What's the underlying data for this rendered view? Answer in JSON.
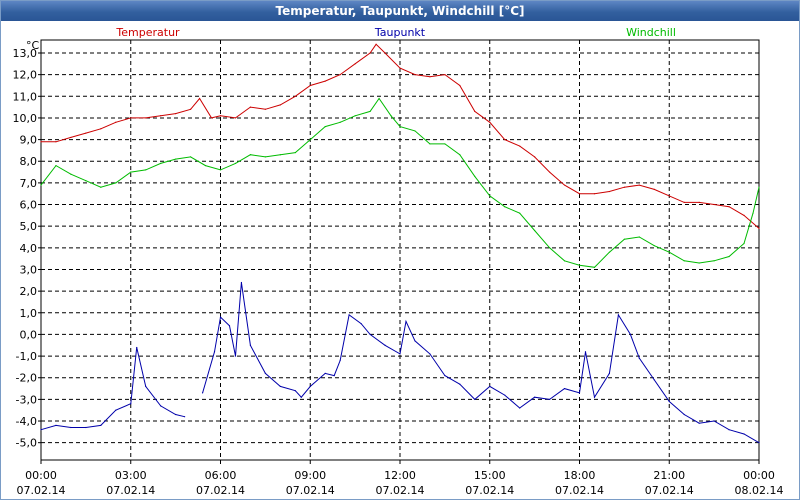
{
  "window": {
    "title": "Temperatur, Taupunkt, Windchill [°C]"
  },
  "chart_data": {
    "type": "line",
    "title": "Temperatur, Taupunkt, Windchill [°C]",
    "ylabel": "°C",
    "ylim": [
      -5.8,
      13.6
    ],
    "yticks": [
      "13,0",
      "12,0",
      "11,0",
      "10,0",
      "9,0",
      "8,0",
      "7,0",
      "6,0",
      "5,0",
      "4,0",
      "3,0",
      "2,0",
      "1,0",
      "0,0",
      "-1,0",
      "-2,0",
      "-3,0",
      "-4,0",
      "-5,0"
    ],
    "xlim": [
      0,
      24
    ],
    "xticks": [
      {
        "time": "00:00",
        "date": "07.02.14"
      },
      {
        "time": "03:00",
        "date": "07.02.14"
      },
      {
        "time": "06:00",
        "date": "07.02.14"
      },
      {
        "time": "09:00",
        "date": "07.02.14"
      },
      {
        "time": "12:00",
        "date": "07.02.14"
      },
      {
        "time": "15:00",
        "date": "07.02.14"
      },
      {
        "time": "18:00",
        "date": "07.02.14"
      },
      {
        "time": "21:00",
        "date": "07.02.14"
      },
      {
        "time": "00:00",
        "date": "08.02.14"
      }
    ],
    "grid": true,
    "series": [
      {
        "name": "Temperatur",
        "color": "#cc0000",
        "points": [
          [
            0,
            8.9
          ],
          [
            0.5,
            8.9
          ],
          [
            1,
            9.1
          ],
          [
            1.5,
            9.3
          ],
          [
            2,
            9.5
          ],
          [
            2.5,
            9.8
          ],
          [
            3,
            10.0
          ],
          [
            3.5,
            10.0
          ],
          [
            4,
            10.1
          ],
          [
            4.5,
            10.2
          ],
          [
            5,
            10.4
          ],
          [
            5.3,
            10.9
          ],
          [
            5.7,
            10.0
          ],
          [
            6,
            10.1
          ],
          [
            6.5,
            10.0
          ],
          [
            7,
            10.5
          ],
          [
            7.5,
            10.4
          ],
          [
            8,
            10.6
          ],
          [
            8.5,
            11.0
          ],
          [
            9,
            11.5
          ],
          [
            9.5,
            11.7
          ],
          [
            10,
            12.0
          ],
          [
            10.5,
            12.5
          ],
          [
            11,
            13.0
          ],
          [
            11.2,
            13.4
          ],
          [
            11.5,
            13.0
          ],
          [
            12,
            12.3
          ],
          [
            12.5,
            12.0
          ],
          [
            13,
            11.9
          ],
          [
            13.5,
            12.0
          ],
          [
            14,
            11.5
          ],
          [
            14.5,
            10.3
          ],
          [
            15,
            9.8
          ],
          [
            15.5,
            9.0
          ],
          [
            16,
            8.7
          ],
          [
            16.5,
            8.2
          ],
          [
            17,
            7.5
          ],
          [
            17.5,
            6.9
          ],
          [
            18,
            6.5
          ],
          [
            18.5,
            6.5
          ],
          [
            19,
            6.6
          ],
          [
            19.5,
            6.8
          ],
          [
            20,
            6.9
          ],
          [
            20.5,
            6.7
          ],
          [
            21,
            6.4
          ],
          [
            21.5,
            6.1
          ],
          [
            22,
            6.1
          ],
          [
            22.5,
            6.0
          ],
          [
            23,
            5.9
          ],
          [
            23.5,
            5.5
          ],
          [
            24,
            4.9
          ]
        ]
      },
      {
        "name": "Taupunkt",
        "color": "#0000aa",
        "points": [
          [
            0,
            -4.4
          ],
          [
            0.5,
            -4.2
          ],
          [
            1,
            -4.3
          ],
          [
            1.5,
            -4.3
          ],
          [
            2,
            -4.2
          ],
          [
            2.5,
            -3.5
          ],
          [
            3,
            -3.2
          ],
          [
            3.2,
            -0.6
          ],
          [
            3.5,
            -2.4
          ],
          [
            4,
            -3.3
          ],
          [
            4.5,
            -3.7
          ],
          [
            4.8,
            -3.8
          ],
          null,
          [
            5.4,
            -2.7
          ],
          [
            5.8,
            -0.8
          ],
          [
            6,
            0.8
          ],
          [
            6.3,
            0.4
          ],
          [
            6.5,
            -1.0
          ],
          [
            6.7,
            2.4
          ],
          [
            7,
            -0.5
          ],
          [
            7.5,
            -1.8
          ],
          [
            8,
            -2.4
          ],
          [
            8.5,
            -2.6
          ],
          [
            8.7,
            -2.9
          ],
          [
            9,
            -2.4
          ],
          [
            9.5,
            -1.8
          ],
          [
            9.8,
            -1.9
          ],
          [
            10,
            -1.2
          ],
          [
            10.3,
            0.9
          ],
          [
            10.7,
            0.5
          ],
          [
            11,
            0.0
          ],
          [
            11.5,
            -0.5
          ],
          [
            12,
            -0.9
          ],
          [
            12.2,
            0.6
          ],
          [
            12.5,
            -0.3
          ],
          [
            13,
            -0.9
          ],
          [
            13.5,
            -1.9
          ],
          [
            14,
            -2.3
          ],
          [
            14.5,
            -3.0
          ],
          [
            15,
            -2.4
          ],
          [
            15.5,
            -2.8
          ],
          [
            16,
            -3.4
          ],
          [
            16.5,
            -2.9
          ],
          [
            17,
            -3.0
          ],
          [
            17.5,
            -2.5
          ],
          [
            18,
            -2.7
          ],
          [
            18.2,
            -0.8
          ],
          [
            18.5,
            -2.9
          ],
          [
            19,
            -1.8
          ],
          [
            19.3,
            0.9
          ],
          [
            19.7,
            0.0
          ],
          [
            20,
            -1.1
          ],
          [
            20.5,
            -2.1
          ],
          [
            21,
            -3.1
          ],
          [
            21.5,
            -3.7
          ],
          [
            22,
            -4.1
          ],
          [
            22.5,
            -4.0
          ],
          [
            23,
            -4.4
          ],
          [
            23.5,
            -4.6
          ],
          [
            24,
            -5.0
          ]
        ]
      },
      {
        "name": "Windchill",
        "color": "#00bb00",
        "points": [
          [
            0,
            6.9
          ],
          [
            0.5,
            7.8
          ],
          [
            1,
            7.4
          ],
          [
            1.5,
            7.1
          ],
          [
            2,
            6.8
          ],
          [
            2.5,
            7.0
          ],
          [
            3,
            7.5
          ],
          [
            3.5,
            7.6
          ],
          [
            4,
            7.9
          ],
          [
            4.5,
            8.1
          ],
          [
            5,
            8.2
          ],
          [
            5.5,
            7.8
          ],
          [
            6,
            7.6
          ],
          [
            6.5,
            7.9
          ],
          [
            7,
            8.3
          ],
          [
            7.5,
            8.2
          ],
          [
            8,
            8.3
          ],
          [
            8.5,
            8.4
          ],
          [
            9,
            9.0
          ],
          [
            9.5,
            9.6
          ],
          [
            10,
            9.8
          ],
          [
            10.5,
            10.1
          ],
          [
            11,
            10.3
          ],
          [
            11.3,
            10.9
          ],
          [
            11.7,
            10.1
          ],
          [
            12,
            9.6
          ],
          [
            12.5,
            9.4
          ],
          [
            13,
            8.8
          ],
          [
            13.5,
            8.8
          ],
          [
            14,
            8.3
          ],
          [
            14.5,
            7.3
          ],
          [
            15,
            6.4
          ],
          [
            15.5,
            5.9
          ],
          [
            16,
            5.6
          ],
          [
            16.5,
            4.8
          ],
          [
            17,
            4.0
          ],
          [
            17.5,
            3.4
          ],
          [
            18,
            3.2
          ],
          [
            18.5,
            3.1
          ],
          [
            19,
            3.8
          ],
          [
            19.5,
            4.4
          ],
          [
            20,
            4.5
          ],
          [
            20.5,
            4.1
          ],
          [
            21,
            3.8
          ],
          [
            21.5,
            3.4
          ],
          [
            22,
            3.3
          ],
          [
            22.5,
            3.4
          ],
          [
            23,
            3.6
          ],
          [
            23.5,
            4.2
          ],
          [
            23.8,
            5.6
          ],
          [
            24,
            6.8
          ]
        ]
      }
    ]
  }
}
